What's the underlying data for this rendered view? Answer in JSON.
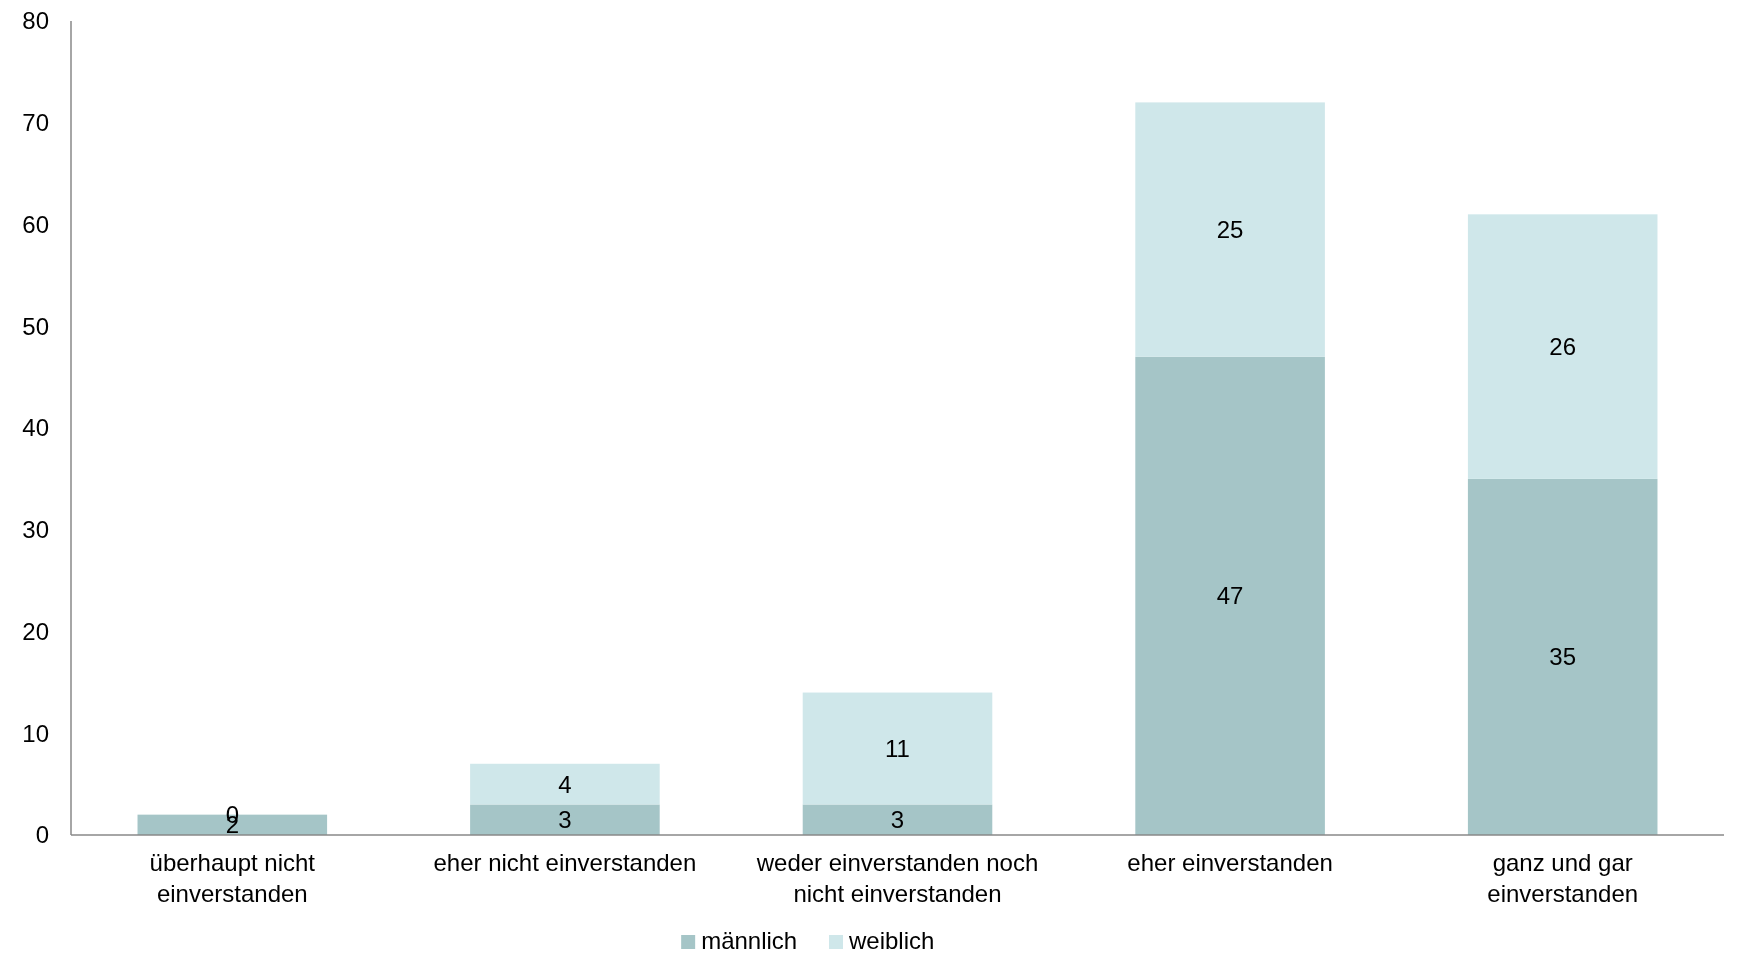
{
  "chart_data": {
    "type": "bar",
    "stacked": true,
    "categories": [
      "überhaupt nicht einverstanden",
      "eher nicht einverstanden",
      "weder einverstanden noch nicht einverstanden",
      "eher einverstanden",
      "ganz und gar einverstanden"
    ],
    "series": [
      {
        "name": "männlich",
        "color": "#a5c5c7",
        "values": [
          2,
          3,
          3,
          47,
          35
        ]
      },
      {
        "name": "weiblich",
        "color": "#cfe7ea",
        "values": [
          0,
          4,
          11,
          25,
          26
        ]
      }
    ],
    "ylim": [
      0,
      80
    ],
    "yticks": [
      0,
      10,
      20,
      30,
      40,
      50,
      60,
      70,
      80
    ],
    "grid": false,
    "legend": "bottom",
    "data_labels": true
  }
}
